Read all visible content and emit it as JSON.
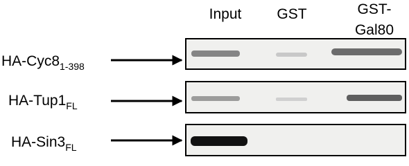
{
  "columns": [
    {
      "lines": [
        "Input"
      ]
    },
    {
      "lines": [
        "GST"
      ]
    },
    {
      "lines": [
        "GST-",
        "Gal80"
      ]
    }
  ],
  "rows": [
    {
      "label": "HA-Cyc8",
      "subscript": "1-398"
    },
    {
      "label": "HA-Tup1",
      "subscript": "FL"
    },
    {
      "label": "HA-Sin3",
      "subscript": "FL"
    }
  ]
}
